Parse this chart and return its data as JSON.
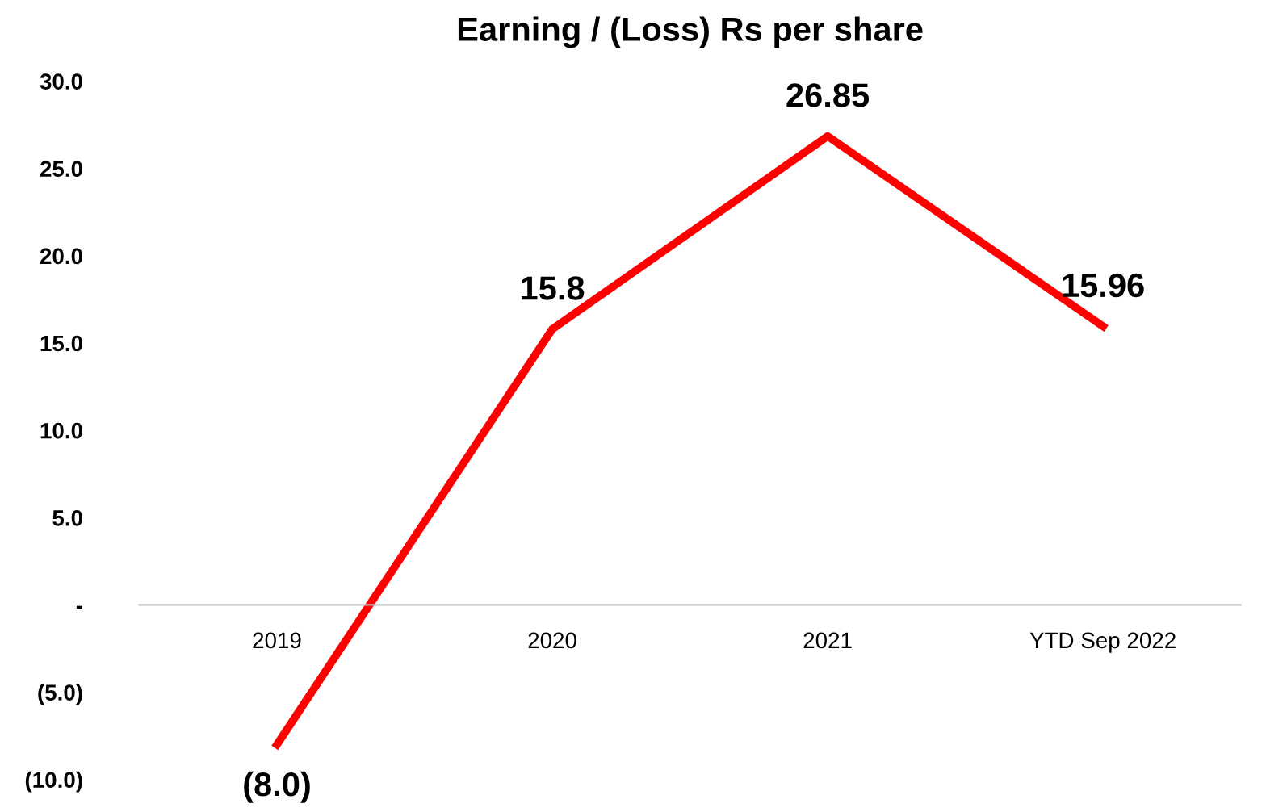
{
  "chart_data": {
    "type": "line",
    "title": "Earning / (Loss) Rs per share",
    "categories": [
      "2019",
      "2020",
      "2021",
      "YTD Sep 2022"
    ],
    "series": [
      {
        "color": "#ff0000",
        "values": [
          -8.0,
          15.8,
          26.85,
          15.96
        ],
        "value_labels": [
          "(8.0)",
          "15.8",
          "26.85",
          "15.96"
        ]
      }
    ],
    "ylim": [
      -10,
      30
    ],
    "yticks": [
      {
        "value": -10,
        "label": "(10.0)"
      },
      {
        "value": -5,
        "label": "(5.0)"
      },
      {
        "value": 0,
        "label": "-"
      },
      {
        "value": 5,
        "label": "5.0"
      },
      {
        "value": 10,
        "label": "10.0"
      },
      {
        "value": 15,
        "label": "15.0"
      },
      {
        "value": 20,
        "label": "20.0"
      },
      {
        "value": 25,
        "label": "25.0"
      },
      {
        "value": 30,
        "label": "30.0"
      }
    ],
    "grid": false,
    "legend": false,
    "marker": "none",
    "line_style": "solid"
  }
}
